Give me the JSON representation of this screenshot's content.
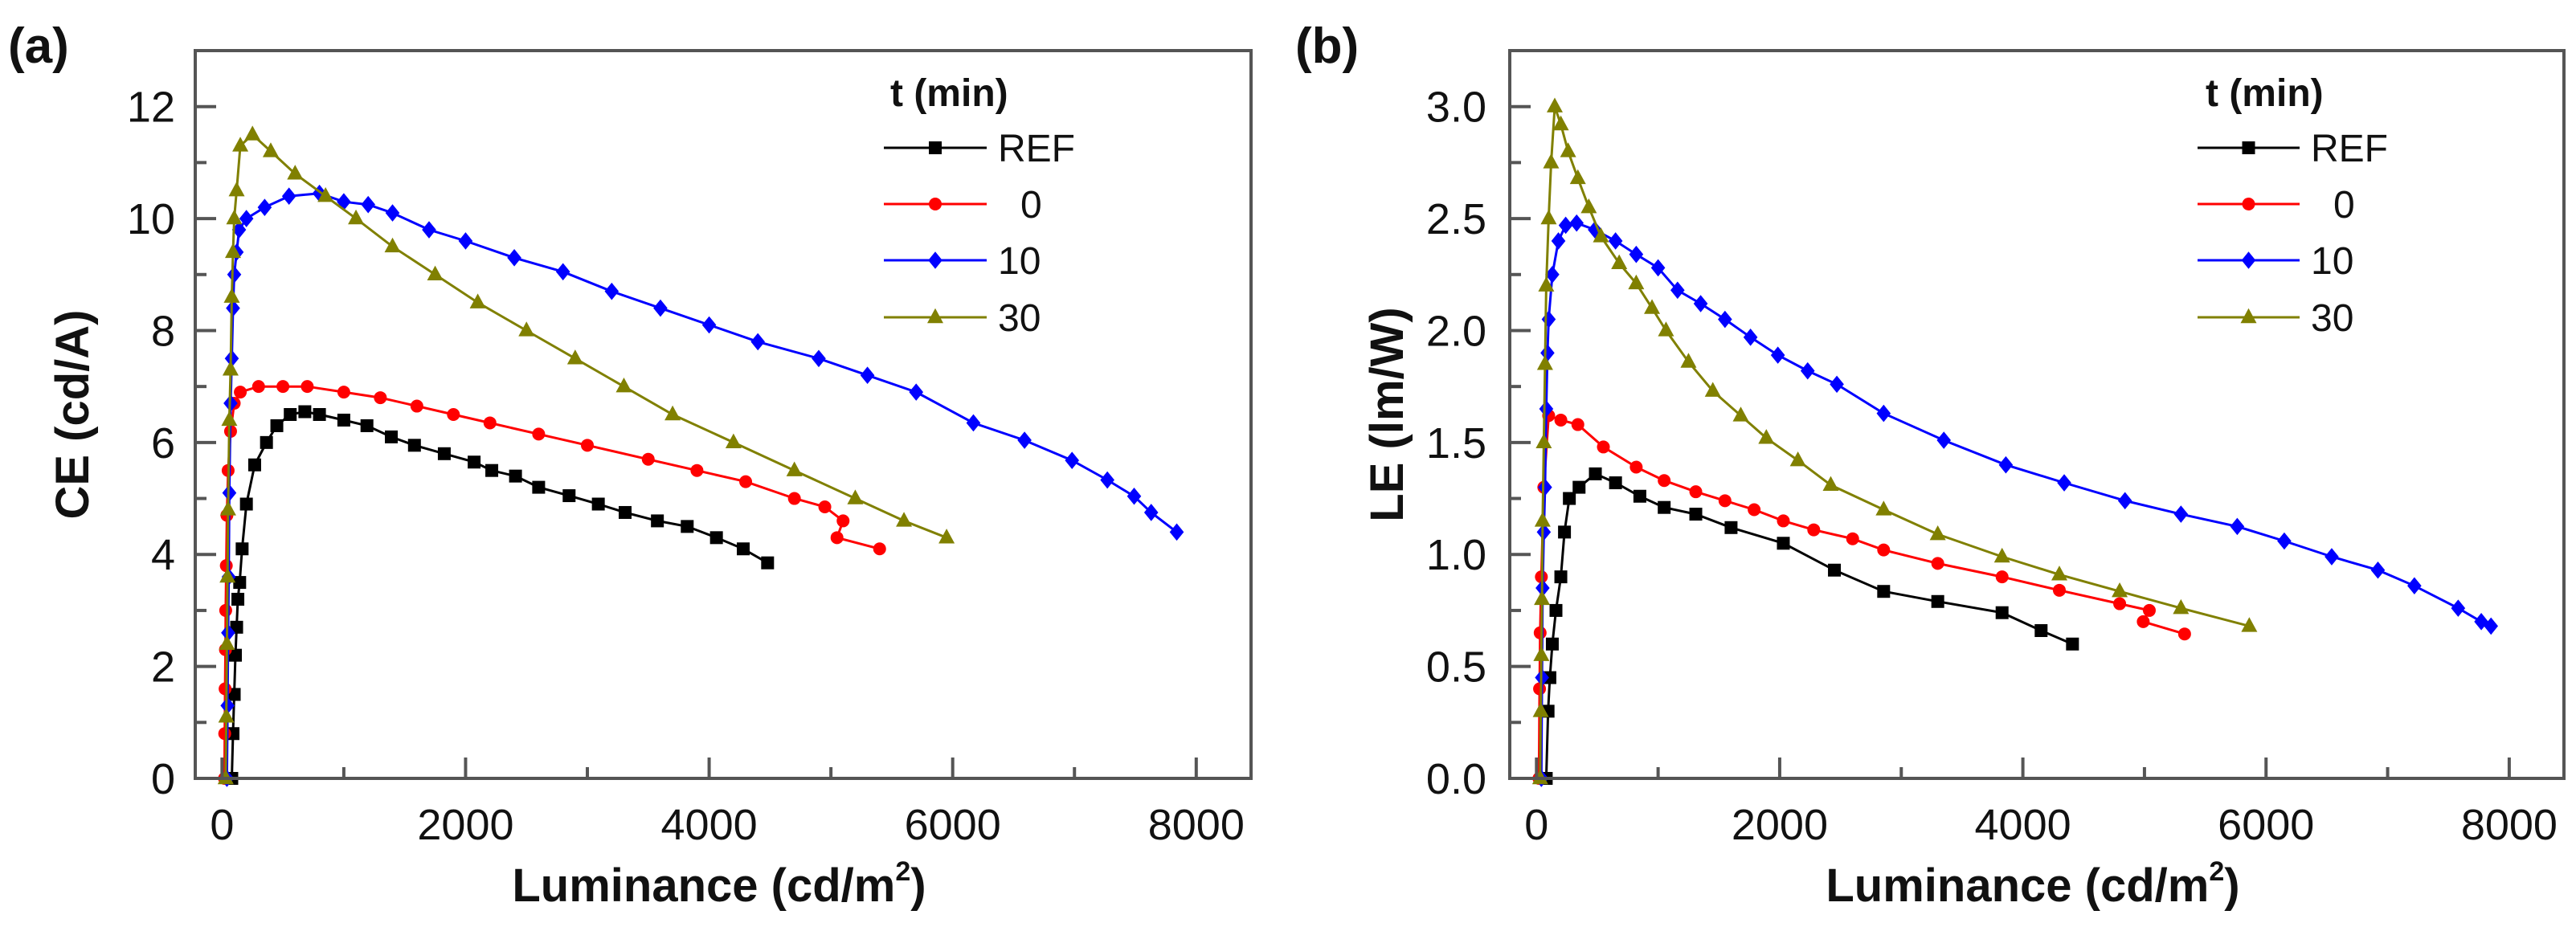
{
  "chart_data": [
    {
      "panel_label": "(a)",
      "type": "line",
      "xlabel": "Luminance (cd/m",
      "xlabel_sup": "2",
      "xlabel_end": ")",
      "ylabel": "CE (cd/A)",
      "xlim": [
        -220,
        8450
      ],
      "ylim": [
        0,
        13
      ],
      "xticks": [
        0,
        2000,
        4000,
        6000,
        8000
      ],
      "xtick_labels": [
        "0",
        "2000",
        "4000",
        "6000",
        "8000"
      ],
      "yticks": [
        0,
        2,
        4,
        6,
        8,
        10,
        12
      ],
      "ytick_labels": [
        "0",
        "2",
        "4",
        "6",
        "8",
        "10",
        "12"
      ],
      "legend_title": "t (min)",
      "legend_position": "top-right",
      "series": [
        {
          "name": "REF",
          "color": "#000000",
          "marker": "square",
          "x": [
            80,
            90,
            100,
            110,
            120,
            130,
            145,
            165,
            200,
            268,
            365,
            450,
            560,
            680,
            800,
            1000,
            1190,
            1390,
            1580,
            1825,
            2070,
            2215,
            2410,
            2600,
            2850,
            3090,
            3310,
            3575,
            3820,
            4060,
            4280,
            4480
          ],
          "y": [
            0,
            0.8,
            1.5,
            2.2,
            2.7,
            3.2,
            3.5,
            4.1,
            4.9,
            5.6,
            6.0,
            6.3,
            6.5,
            6.55,
            6.5,
            6.4,
            6.3,
            6.1,
            5.95,
            5.8,
            5.65,
            5.5,
            5.4,
            5.2,
            5.05,
            4.9,
            4.75,
            4.6,
            4.5,
            4.3,
            4.1,
            3.85
          ]
        },
        {
          "name": "0",
          "color": "#ff0000",
          "marker": "circle",
          "x": [
            20,
            22,
            25,
            28,
            30,
            35,
            40,
            50,
            70,
            100,
            150,
            300,
            500,
            700,
            1000,
            1300,
            1600,
            1900,
            2200,
            2600,
            3000,
            3500,
            3900,
            4300,
            4700,
            4950,
            5100,
            5050,
            5400
          ],
          "y": [
            0,
            0.8,
            1.6,
            2.3,
            3.0,
            3.8,
            4.7,
            5.5,
            6.2,
            6.7,
            6.9,
            7.0,
            7.0,
            7.0,
            6.9,
            6.8,
            6.65,
            6.5,
            6.35,
            6.15,
            5.95,
            5.7,
            5.5,
            5.3,
            5.0,
            4.85,
            4.6,
            4.3,
            4.1
          ]
        },
        {
          "name": "10",
          "color": "#0000ff",
          "marker": "diamond",
          "x": [
            40,
            45,
            50,
            55,
            60,
            70,
            80,
            90,
            100,
            120,
            140,
            200,
            350,
            550,
            800,
            1000,
            1200,
            1400,
            1700,
            2000,
            2400,
            2800,
            3200,
            3600,
            4000,
            4400,
            4900,
            5300,
            5700,
            6170,
            6590,
            6980,
            7270,
            7490,
            7630,
            7840
          ],
          "y": [
            0,
            1.3,
            2.6,
            3.6,
            5.1,
            6.7,
            7.5,
            8.4,
            9.0,
            9.4,
            9.8,
            10.0,
            10.2,
            10.4,
            10.45,
            10.3,
            10.25,
            10.1,
            9.8,
            9.6,
            9.3,
            9.05,
            8.7,
            8.4,
            8.1,
            7.8,
            7.5,
            7.2,
            6.9,
            6.35,
            6.04,
            5.68,
            5.33,
            5.04,
            4.75,
            4.4
          ]
        },
        {
          "name": "30",
          "color": "#808000",
          "marker": "triangle",
          "x": [
            30,
            35,
            40,
            45,
            50,
            60,
            70,
            80,
            90,
            100,
            120,
            150,
            250,
            400,
            600,
            850,
            1100,
            1400,
            1750,
            2100,
            2500,
            2900,
            3300,
            3700,
            4200,
            4700,
            5200,
            5600,
            5950
          ],
          "y": [
            0,
            1.1,
            2.4,
            3.6,
            4.8,
            6.4,
            7.3,
            8.6,
            9.4,
            10.0,
            10.5,
            11.3,
            11.5,
            11.2,
            10.8,
            10.4,
            10.0,
            9.5,
            9.0,
            8.5,
            8.0,
            7.5,
            7.0,
            6.5,
            6.0,
            5.5,
            5.0,
            4.6,
            4.3
          ]
        }
      ]
    },
    {
      "panel_label": "(b)",
      "type": "line",
      "xlabel": "Luminance (cd/m",
      "xlabel_sup": "2",
      "xlabel_end": ")",
      "ylabel": "LE (lm/W)",
      "xlim": [
        -220,
        8450
      ],
      "ylim": [
        0,
        3.25
      ],
      "xticks": [
        0,
        2000,
        4000,
        6000,
        8000
      ],
      "xtick_labels": [
        "0",
        "2000",
        "4000",
        "6000",
        "8000"
      ],
      "yticks": [
        0,
        0.5,
        1.0,
        1.5,
        2.0,
        2.5,
        3.0
      ],
      "ytick_labels": [
        "0.0",
        "0.5",
        "1.0",
        "1.5",
        "2.0",
        "2.5",
        "3.0"
      ],
      "legend_title": "t (min)",
      "legend_position": "top-right",
      "series": [
        {
          "name": "REF",
          "color": "#000000",
          "marker": "square",
          "x": [
            80,
            95,
            110,
            130,
            160,
            200,
            230,
            270,
            350,
            484,
            650,
            850,
            1050,
            1310,
            1600,
            2030,
            2450,
            2855,
            3300,
            3829,
            4150,
            4408
          ],
          "y": [
            0,
            0.3,
            0.45,
            0.6,
            0.75,
            0.9,
            1.1,
            1.25,
            1.3,
            1.36,
            1.32,
            1.26,
            1.21,
            1.18,
            1.12,
            1.05,
            0.93,
            0.835,
            0.79,
            0.74,
            0.66,
            0.6
          ]
        },
        {
          "name": "0",
          "color": "#ff0000",
          "marker": "circle",
          "x": [
            20,
            25,
            30,
            40,
            60,
            100,
            200,
            340,
            550,
            820,
            1050,
            1310,
            1550,
            1790,
            2030,
            2280,
            2600,
            2855,
            3300,
            3829,
            4300,
            4796,
            5040,
            4990,
            5330
          ],
          "y": [
            0,
            0.4,
            0.65,
            0.9,
            1.3,
            1.62,
            1.6,
            1.58,
            1.48,
            1.39,
            1.33,
            1.28,
            1.24,
            1.2,
            1.15,
            1.11,
            1.07,
            1.02,
            0.96,
            0.9,
            0.84,
            0.78,
            0.75,
            0.7,
            0.645
          ]
        },
        {
          "name": "10",
          "color": "#0000ff",
          "marker": "diamond",
          "x": [
            40,
            45,
            50,
            60,
            70,
            80,
            90,
            100,
            130,
            180,
            240,
            330,
            480,
            650,
            820,
            1000,
            1160,
            1350,
            1550,
            1760,
            1985,
            2230,
            2470,
            2855,
            3350,
            3860,
            4340,
            4840,
            5300,
            5763,
            6150,
            6540,
            6920,
            7220,
            7580,
            7770,
            7850
          ],
          "y": [
            0,
            0.45,
            0.85,
            1.1,
            1.3,
            1.65,
            1.9,
            2.05,
            2.25,
            2.4,
            2.47,
            2.48,
            2.45,
            2.4,
            2.34,
            2.28,
            2.18,
            2.12,
            2.05,
            1.97,
            1.89,
            1.82,
            1.76,
            1.63,
            1.51,
            1.4,
            1.32,
            1.24,
            1.18,
            1.125,
            1.06,
            0.99,
            0.93,
            0.86,
            0.76,
            0.7,
            0.68
          ]
        },
        {
          "name": "30",
          "color": "#808000",
          "marker": "triangle",
          "x": [
            30,
            35,
            40,
            45,
            50,
            60,
            70,
            80,
            100,
            120,
            150,
            200,
            260,
            340,
            430,
            530,
            680,
            820,
            950,
            1065,
            1250,
            1450,
            1680,
            1890,
            2150,
            2420,
            2855,
            3300,
            3829,
            4300,
            4796,
            5300,
            5862
          ],
          "y": [
            0,
            0.3,
            0.55,
            0.8,
            1.15,
            1.5,
            1.85,
            2.2,
            2.5,
            2.75,
            3.0,
            2.92,
            2.8,
            2.68,
            2.55,
            2.42,
            2.3,
            2.21,
            2.1,
            2.0,
            1.86,
            1.73,
            1.62,
            1.52,
            1.42,
            1.31,
            1.2,
            1.09,
            0.99,
            0.91,
            0.835,
            0.76,
            0.68
          ]
        }
      ]
    }
  ]
}
